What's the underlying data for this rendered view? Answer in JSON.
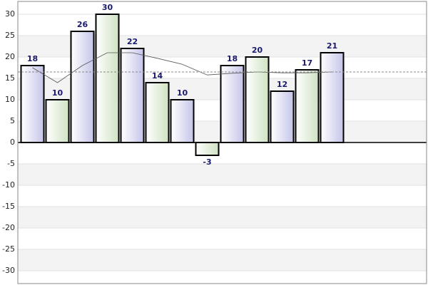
{
  "chart_data": {
    "type": "bar",
    "series": [
      {
        "type": "bar",
        "colors": [
          "#d2d2ee",
          "#d6e6cc"
        ],
        "values": [
          18,
          10,
          26,
          30,
          22,
          14,
          10,
          -3,
          18,
          20,
          12,
          17,
          21
        ]
      },
      {
        "type": "line",
        "color": "#555555",
        "values": [
          17.5,
          14,
          18,
          21,
          21,
          19.7,
          18.3,
          15.8,
          16.2,
          16.5,
          16.3,
          16.3,
          16.5
        ]
      }
    ],
    "average_line": 16.5,
    "ylim": [
      -33,
      33
    ],
    "yticks": [
      -30,
      -25,
      -20,
      -15,
      -10,
      -5,
      0,
      5,
      10,
      15,
      20,
      25,
      30
    ],
    "grid": true
  }
}
